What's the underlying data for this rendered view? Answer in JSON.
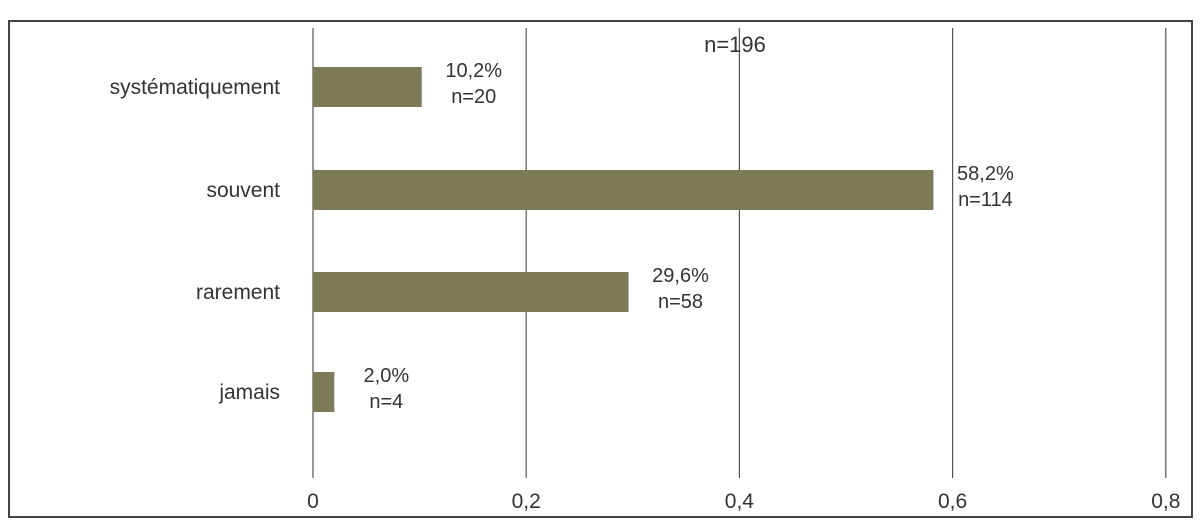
{
  "chart_data": {
    "type": "bar",
    "orientation": "horizontal",
    "title": "n=196",
    "xlabel": "",
    "ylabel": "",
    "categories": [
      "systématiquement",
      "souvent",
      "rarement",
      "jamais"
    ],
    "values": [
      0.102,
      0.582,
      0.296,
      0.02
    ],
    "data_labels": [
      {
        "pct": "10,2%",
        "n": "n=20"
      },
      {
        "pct": "58,2%",
        "n": "n=114"
      },
      {
        "pct": "29,6%",
        "n": "n=58"
      },
      {
        "pct": "2,0%",
        "n": "n=4"
      }
    ],
    "xlim": [
      0,
      0.8
    ],
    "x_ticks": [
      {
        "value": 0,
        "label": "0"
      },
      {
        "value": 0.2,
        "label": "0,2"
      },
      {
        "value": 0.4,
        "label": "0,4"
      },
      {
        "value": 0.6,
        "label": "0,6"
      },
      {
        "value": 0.8,
        "label": "0,8"
      }
    ],
    "grid": "vertical",
    "legend": "none",
    "colors": {
      "bar": "#7d7a58",
      "grid": "#555555",
      "frame": "#444444",
      "text": "#333333"
    }
  }
}
